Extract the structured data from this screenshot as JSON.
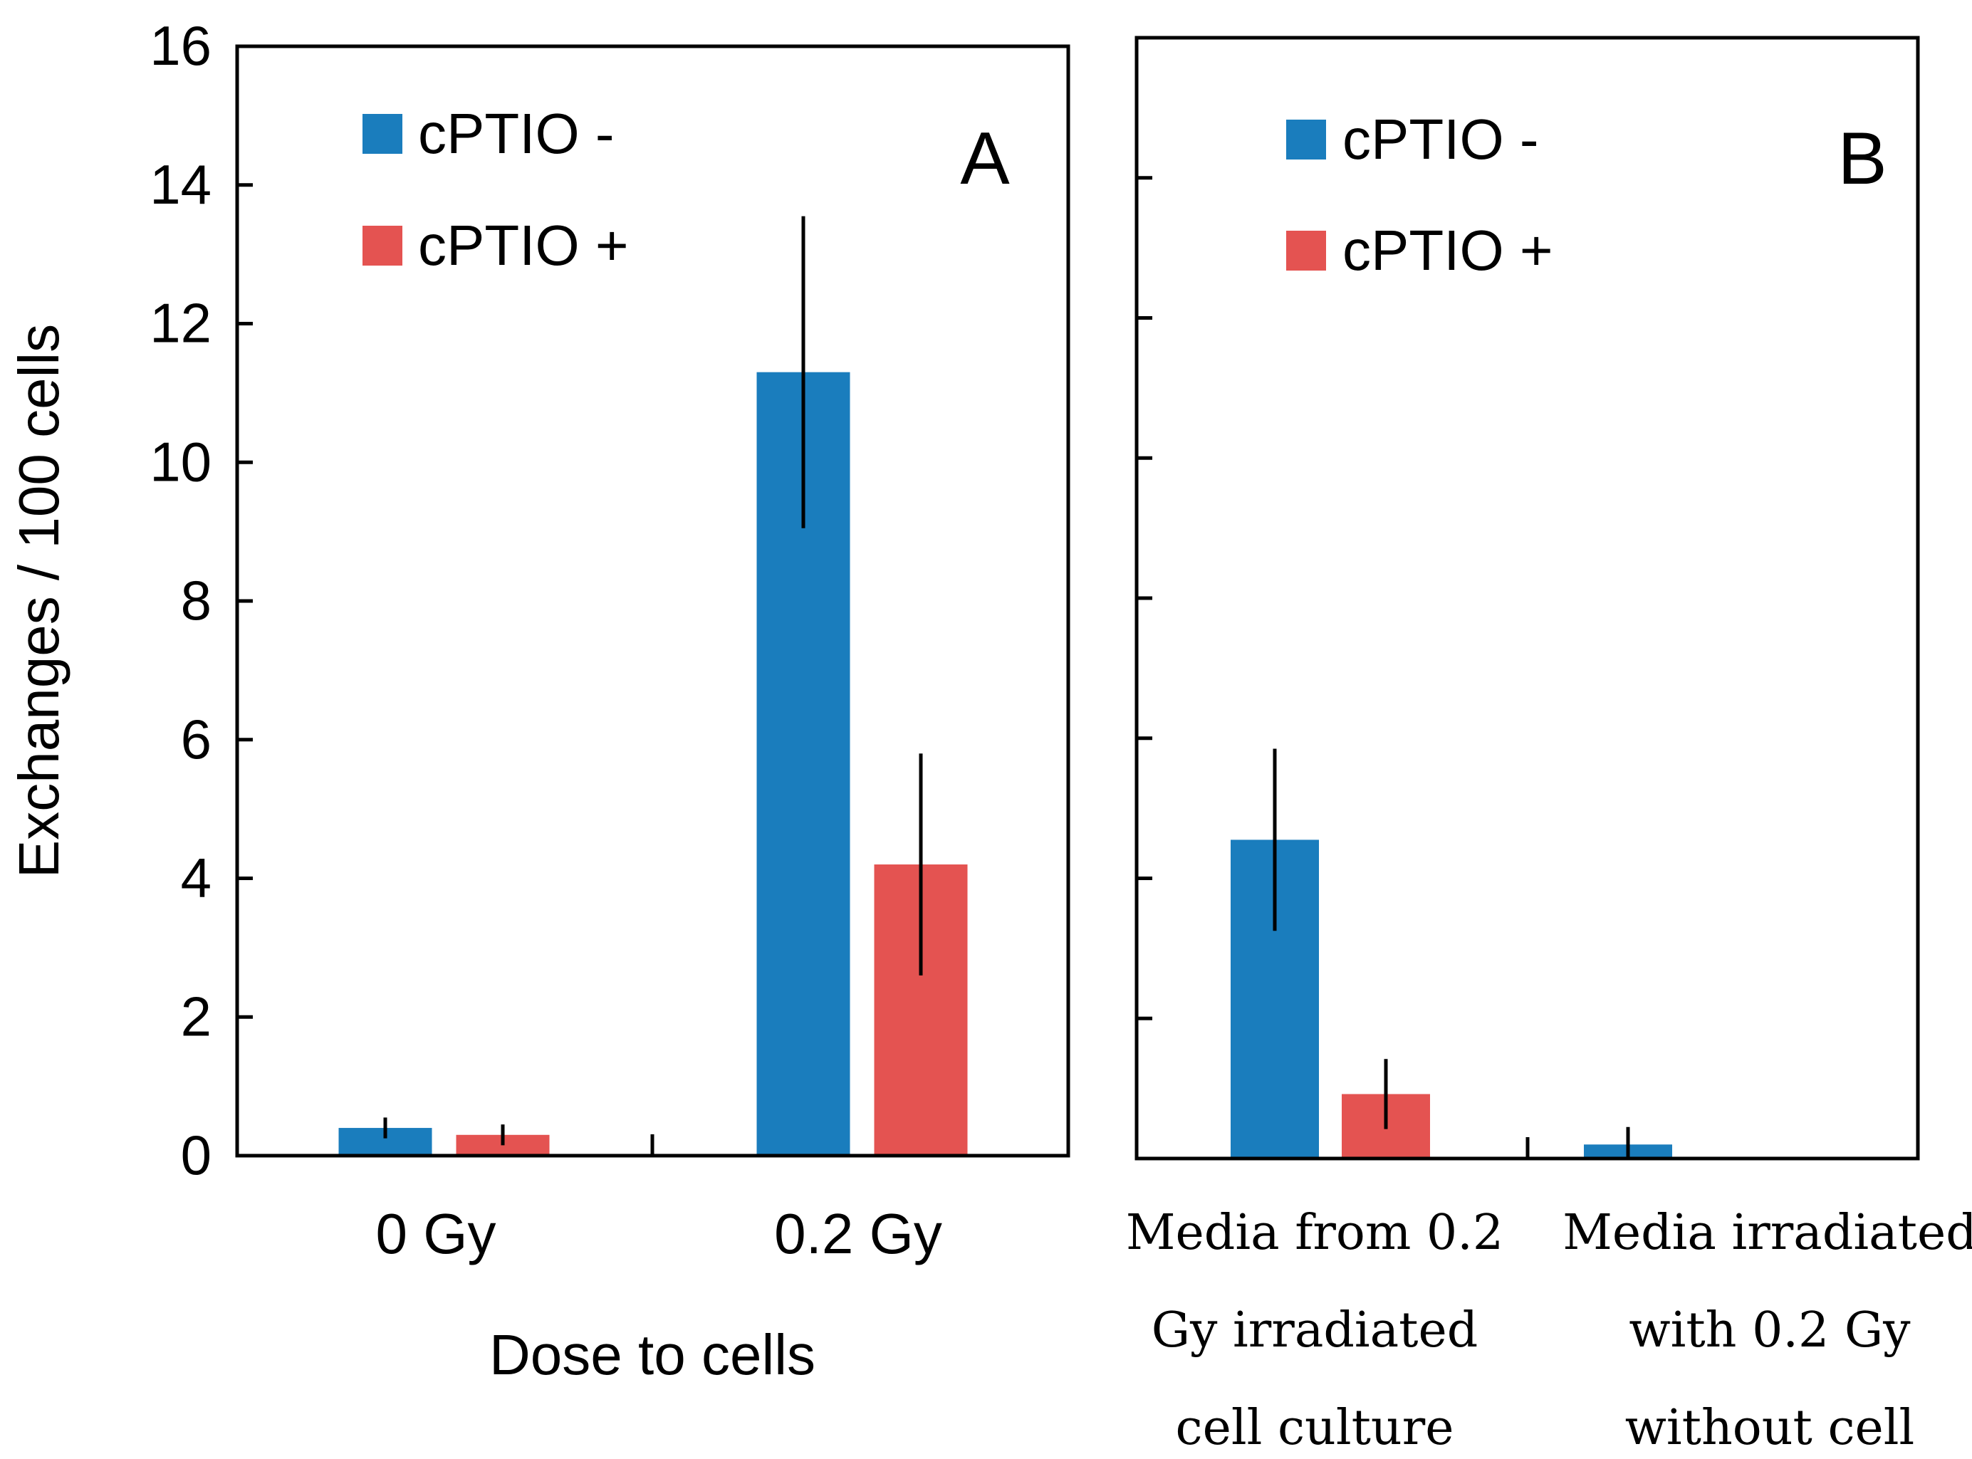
{
  "colors": {
    "series_minus": "#1a7dbd",
    "series_plus": "#e45351",
    "axis": "#000000",
    "background": "#ffffff"
  },
  "chart_data": [
    {
      "panel": "A",
      "type": "bar",
      "panel_label": "A",
      "ylabel": "Exchanges / 100 cells",
      "xlabel": "Dose to cells",
      "ylim": [
        0,
        16
      ],
      "yticks": [
        0,
        2,
        4,
        6,
        8,
        10,
        12,
        14,
        16
      ],
      "categories": [
        "0 Gy",
        "0.2 Gy"
      ],
      "series": [
        {
          "name": "cPTIO -",
          "values": [
            0.4,
            11.3
          ],
          "errors": [
            0.15,
            2.25
          ]
        },
        {
          "name": "cPTIO +",
          "values": [
            0.3,
            4.2
          ],
          "errors": [
            0.15,
            1.6
          ]
        }
      ],
      "legend": [
        "cPTIO -",
        "cPTIO +"
      ],
      "legend_position": "top-left"
    },
    {
      "panel": "B",
      "type": "bar",
      "panel_label": "B",
      "ylim": [
        0,
        16
      ],
      "yticks": [
        0,
        2,
        4,
        6,
        8,
        10,
        12,
        14,
        16
      ],
      "categories": [
        [
          "Media from 0.2",
          "Gy irradiated",
          "cell culture"
        ],
        [
          "Media irradiated",
          "with 0.2 Gy",
          "without cell"
        ]
      ],
      "series": [
        {
          "name": "cPTIO -",
          "values": [
            4.55,
            0.2
          ],
          "errors": [
            1.3,
            0.25
          ]
        },
        {
          "name": "cPTIO +",
          "values": [
            0.92,
            0
          ],
          "errors": [
            0.5,
            0
          ]
        }
      ],
      "legend": [
        "cPTIO -",
        "cPTIO +"
      ],
      "legend_position": "top-left"
    }
  ]
}
